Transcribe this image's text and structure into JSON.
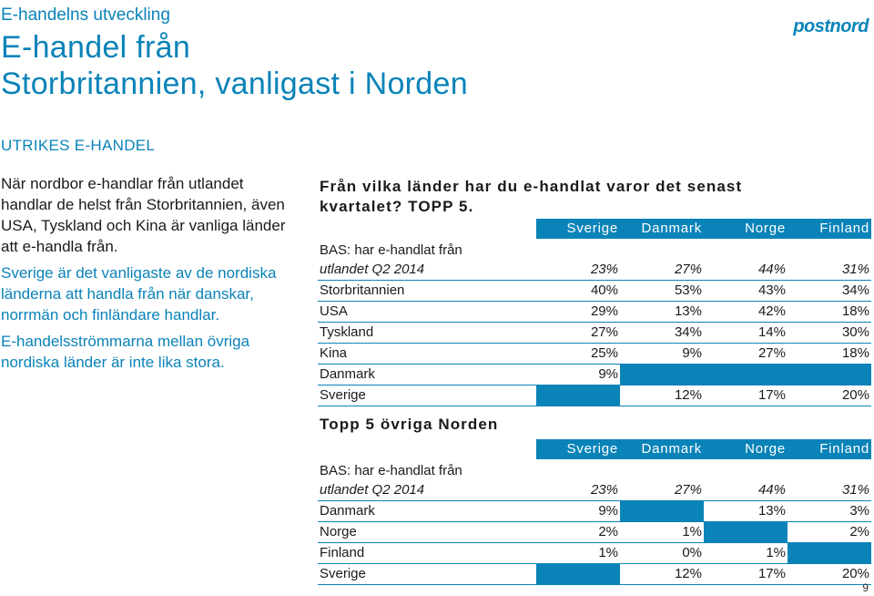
{
  "header": {
    "kicker": "E-handelns utveckling",
    "title_line1": "E-handel från",
    "title_line2": "Storbritannien, vanligast i Norden",
    "logo_text": "postnord"
  },
  "section_label": "UTRIKES E-HANDEL",
  "body": {
    "para1": "När nordbor e-handlar från utlandet handlar de helst från Storbritannien, även USA, Tyskland och Kina är vanliga länder att e-handla från.",
    "para2": "Sverige är det vanligaste av de nordiska länderna att handla från när danskar, norrmän och finländare handlar.",
    "para3": "E-handelsströmmarna mellan övriga nordiska länder är inte lika stora."
  },
  "table1": {
    "question": "Från vilka länder har du e-handlat varor det senast kvartalet? TOPP 5.",
    "columns": [
      "Sverige",
      "Danmark",
      "Norge",
      "Finland"
    ],
    "base_label_line1": "BAS: har e-handlat från",
    "base_label_line2": "utlandet Q2 2014",
    "base_values": [
      "23%",
      "27%",
      "44%",
      "31%"
    ],
    "rows": [
      {
        "label": "Storbritannien",
        "values": [
          "40%",
          "53%",
          "43%",
          "34%"
        ]
      },
      {
        "label": "USA",
        "values": [
          "29%",
          "13%",
          "42%",
          "18%"
        ]
      },
      {
        "label": "Tyskland",
        "values": [
          "27%",
          "34%",
          "14%",
          "30%"
        ]
      },
      {
        "label": "Kina",
        "values": [
          "25%",
          "9%",
          "27%",
          "18%"
        ]
      },
      {
        "label": "Danmark",
        "values": [
          "9%",
          "",
          "",
          ""
        ]
      },
      {
        "label": "Sverige",
        "values": [
          "",
          "12%",
          "17%",
          "20%"
        ]
      }
    ]
  },
  "table2": {
    "heading": "Topp 5 övriga Norden",
    "columns": [
      "Sverige",
      "Danmark",
      "Norge",
      "Finland"
    ],
    "base_label_line1": "BAS: har e-handlat från",
    "base_label_line2": "utlandet Q2 2014",
    "base_values": [
      "23%",
      "27%",
      "44%",
      "31%"
    ],
    "rows": [
      {
        "label": "Danmark",
        "values": [
          "9%",
          "",
          "13%",
          "3%"
        ]
      },
      {
        "label": "Norge",
        "values": [
          "2%",
          "1%",
          "",
          "2%"
        ]
      },
      {
        "label": "Finland",
        "values": [
          "1%",
          "0%",
          "1%",
          ""
        ]
      },
      {
        "label": "Sverige",
        "values": [
          "",
          "12%",
          "17%",
          "20%"
        ]
      }
    ]
  },
  "page_number": "9",
  "colors": {
    "accent": "#0a83b8",
    "text": "#1a1a1a"
  }
}
